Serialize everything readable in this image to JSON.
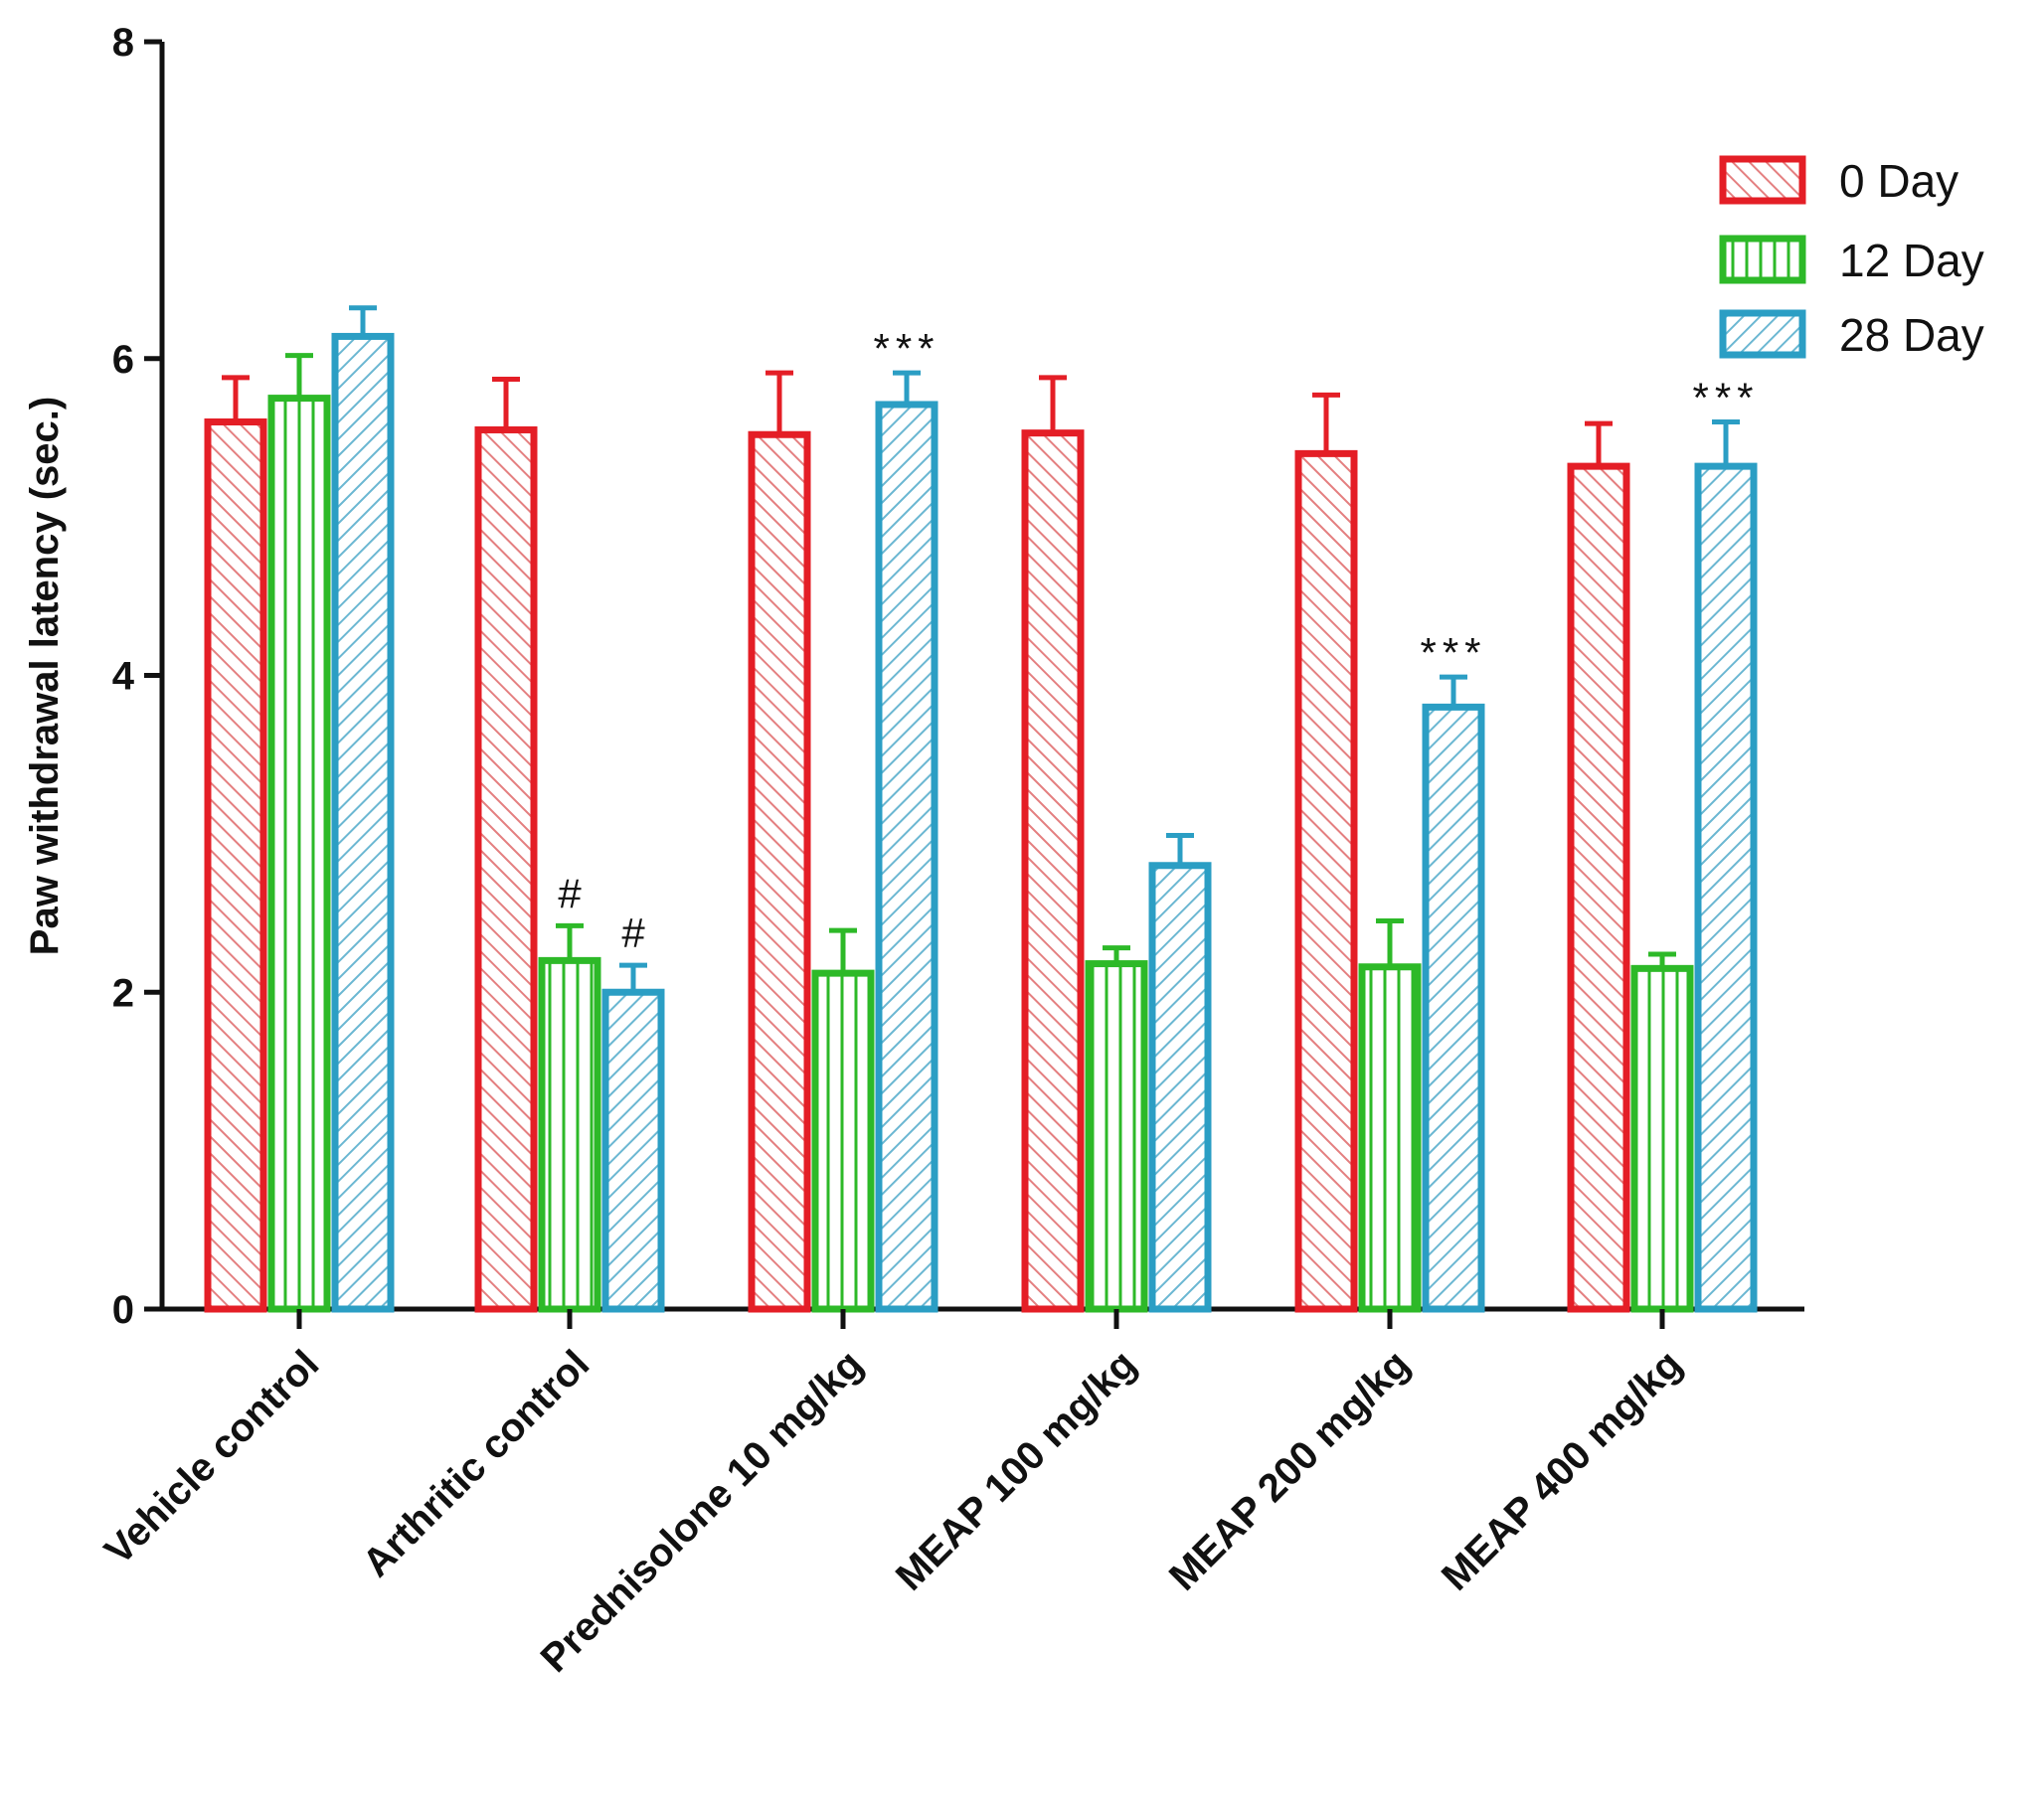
{
  "chart_data": {
    "type": "bar",
    "title": "",
    "xlabel": "",
    "ylabel": "Paw withdrawal latency (sec.)",
    "ylim": [
      0,
      8
    ],
    "yticks": [
      0,
      2,
      4,
      6,
      8
    ],
    "grid": false,
    "legend_position": "top-right",
    "categories": [
      "Vehicle control",
      "Arthritic control",
      "Prednisolone 10 mg/kg",
      "MEAP 100 mg/kg",
      "MEAP 200 mg/kg",
      "MEAP 400 mg/kg"
    ],
    "series": [
      {
        "name": "0 Day",
        "color": "#e41e26",
        "pattern": "diagonal-right",
        "values": [
          5.6,
          5.55,
          5.52,
          5.53,
          5.4,
          5.32
        ],
        "errors": [
          0.28,
          0.32,
          0.39,
          0.35,
          0.37,
          0.27
        ],
        "annotations": [
          "",
          "",
          "",
          "",
          "",
          ""
        ]
      },
      {
        "name": "12 Day",
        "color": "#2db928",
        "pattern": "vertical",
        "values": [
          5.75,
          2.2,
          2.12,
          2.18,
          2.16,
          2.15
        ],
        "errors": [
          0.27,
          0.22,
          0.27,
          0.1,
          0.29,
          0.09
        ],
        "annotations": [
          "",
          "#",
          "",
          "",
          "",
          ""
        ]
      },
      {
        "name": "28 Day",
        "color": "#2b9ec4",
        "pattern": "diagonal-left",
        "values": [
          6.14,
          2.0,
          5.71,
          2.8,
          3.8,
          5.32
        ],
        "errors": [
          0.18,
          0.17,
          0.2,
          0.19,
          0.19,
          0.28
        ],
        "annotations": [
          "",
          "#",
          "***",
          "",
          "***",
          "***"
        ]
      }
    ]
  }
}
